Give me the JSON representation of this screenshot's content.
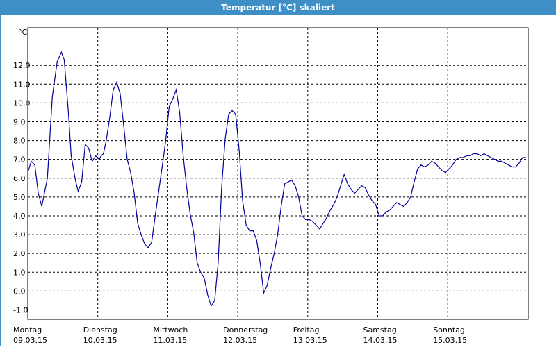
{
  "window": {
    "title": "Temperatur [°C] skaliert"
  },
  "colors": {
    "title_bar": "#3d8fc6",
    "line": "#000099",
    "grid": "#000000"
  },
  "chart_data": {
    "type": "line",
    "title": "Temperatur [°C] skaliert",
    "ylabel": "°C",
    "xlabel": "",
    "ylim": [
      -1.5,
      14.0
    ],
    "xlim": [
      0,
      7.15
    ],
    "grid": true,
    "y_ticks": [
      -1.0,
      0.0,
      1.0,
      2.0,
      3.0,
      4.0,
      5.0,
      6.0,
      7.0,
      8.0,
      9.0,
      10.0,
      11.0,
      12.0
    ],
    "y_tick_labels": [
      "-1,0",
      "0,0",
      "1,0",
      "2,0",
      "3,0",
      "4,0",
      "5,0",
      "6,0",
      "7,0",
      "8,0",
      "9,0",
      "10,0",
      "11,0",
      "12,0"
    ],
    "x_ticks": [
      {
        "day": "Montag",
        "date": "09.03.15"
      },
      {
        "day": "Dienstag",
        "date": "10.03.15"
      },
      {
        "day": "Mittwoch",
        "date": "11.03.15"
      },
      {
        "day": "Donnerstag",
        "date": "12.03.15"
      },
      {
        "day": "Freitag",
        "date": "13.03.15"
      },
      {
        "day": "Samstag",
        "date": "14.03.15"
      },
      {
        "day": "Sonntag",
        "date": "15.03.15"
      }
    ],
    "series": [
      {
        "x": [
          0.0,
          0.05,
          0.1,
          0.15,
          0.2,
          0.28,
          0.35,
          0.42,
          0.48,
          0.52,
          0.58,
          0.62,
          0.68,
          0.72,
          0.77,
          0.82,
          0.87,
          0.92,
          0.97,
          1.02,
          1.05,
          1.08,
          1.12,
          1.17,
          1.22,
          1.27,
          1.32,
          1.37,
          1.42,
          1.47,
          1.52,
          1.57,
          1.62,
          1.67,
          1.72,
          1.77,
          1.82,
          1.87,
          1.92,
          1.97,
          2.02,
          2.07,
          2.12,
          2.17,
          2.22,
          2.27,
          2.32,
          2.37,
          2.42,
          2.47,
          2.52,
          2.57,
          2.62,
          2.67,
          2.72,
          2.77,
          2.82,
          2.87,
          2.92,
          2.97,
          3.02,
          3.07,
          3.12,
          3.17,
          3.22,
          3.27,
          3.32,
          3.37,
          3.42,
          3.47,
          3.52,
          3.57,
          3.62,
          3.67,
          3.72,
          3.77,
          3.82,
          3.87,
          3.92,
          3.97,
          4.02,
          4.07,
          4.12,
          4.17,
          4.22,
          4.27,
          4.32,
          4.37,
          4.42,
          4.47,
          4.52,
          4.57,
          4.62,
          4.67,
          4.72,
          4.77,
          4.82,
          4.87,
          4.92,
          4.97,
          5.02,
          5.07,
          5.12,
          5.17,
          5.22,
          5.27,
          5.32,
          5.37,
          5.42,
          5.47,
          5.52,
          5.57,
          5.62,
          5.67,
          5.72,
          5.77,
          5.82,
          5.87,
          5.92,
          5.97,
          6.02,
          6.07,
          6.12,
          6.17,
          6.22,
          6.27,
          6.32,
          6.37,
          6.42,
          6.47,
          6.52,
          6.57,
          6.62,
          6.67,
          6.72,
          6.77,
          6.82,
          6.87,
          6.92,
          6.97,
          7.02,
          7.07,
          7.12
        ],
        "values": [
          6.3,
          6.9,
          6.7,
          5.2,
          4.5,
          6.0,
          10.3,
          12.2,
          12.7,
          12.3,
          9.5,
          7.2,
          5.9,
          5.3,
          5.8,
          7.8,
          7.6,
          6.9,
          7.2,
          7.0,
          7.2,
          7.3,
          8.0,
          9.2,
          10.7,
          11.1,
          10.5,
          8.8,
          7.0,
          6.3,
          5.2,
          3.6,
          3.0,
          2.5,
          2.3,
          2.6,
          4.0,
          5.3,
          6.6,
          8.0,
          9.8,
          10.2,
          10.7,
          9.5,
          7.2,
          5.5,
          4.1,
          3.1,
          1.5,
          1.0,
          0.7,
          -0.2,
          -0.8,
          -0.5,
          1.5,
          5.5,
          8.1,
          9.4,
          9.6,
          9.4,
          7.5,
          4.8,
          3.5,
          3.2,
          3.2,
          2.7,
          1.5,
          -0.1,
          0.3,
          1.2,
          2.0,
          3.0,
          4.5,
          5.7,
          5.8,
          5.9,
          5.6,
          5.0,
          4.0,
          3.8,
          3.8,
          3.7,
          3.5,
          3.3,
          3.6,
          3.9,
          4.3,
          4.6,
          5.0,
          5.6,
          6.2,
          5.7,
          5.4,
          5.2,
          5.4,
          5.6,
          5.5,
          5.1,
          4.8,
          4.6,
          4.0,
          4.0,
          4.2,
          4.3,
          4.5,
          4.7,
          4.6,
          4.5,
          4.7,
          5.0,
          5.8,
          6.5,
          6.7,
          6.6,
          6.7,
          6.9,
          6.8,
          6.6,
          6.4,
          6.3,
          6.5,
          6.7,
          7.0,
          7.1,
          7.1,
          7.2,
          7.2,
          7.3,
          7.3,
          7.2,
          7.3,
          7.2,
          7.1,
          7.0,
          6.9,
          6.9,
          6.8,
          6.7,
          6.6,
          6.6,
          6.8,
          7.1,
          7.1
        ]
      }
    ]
  }
}
